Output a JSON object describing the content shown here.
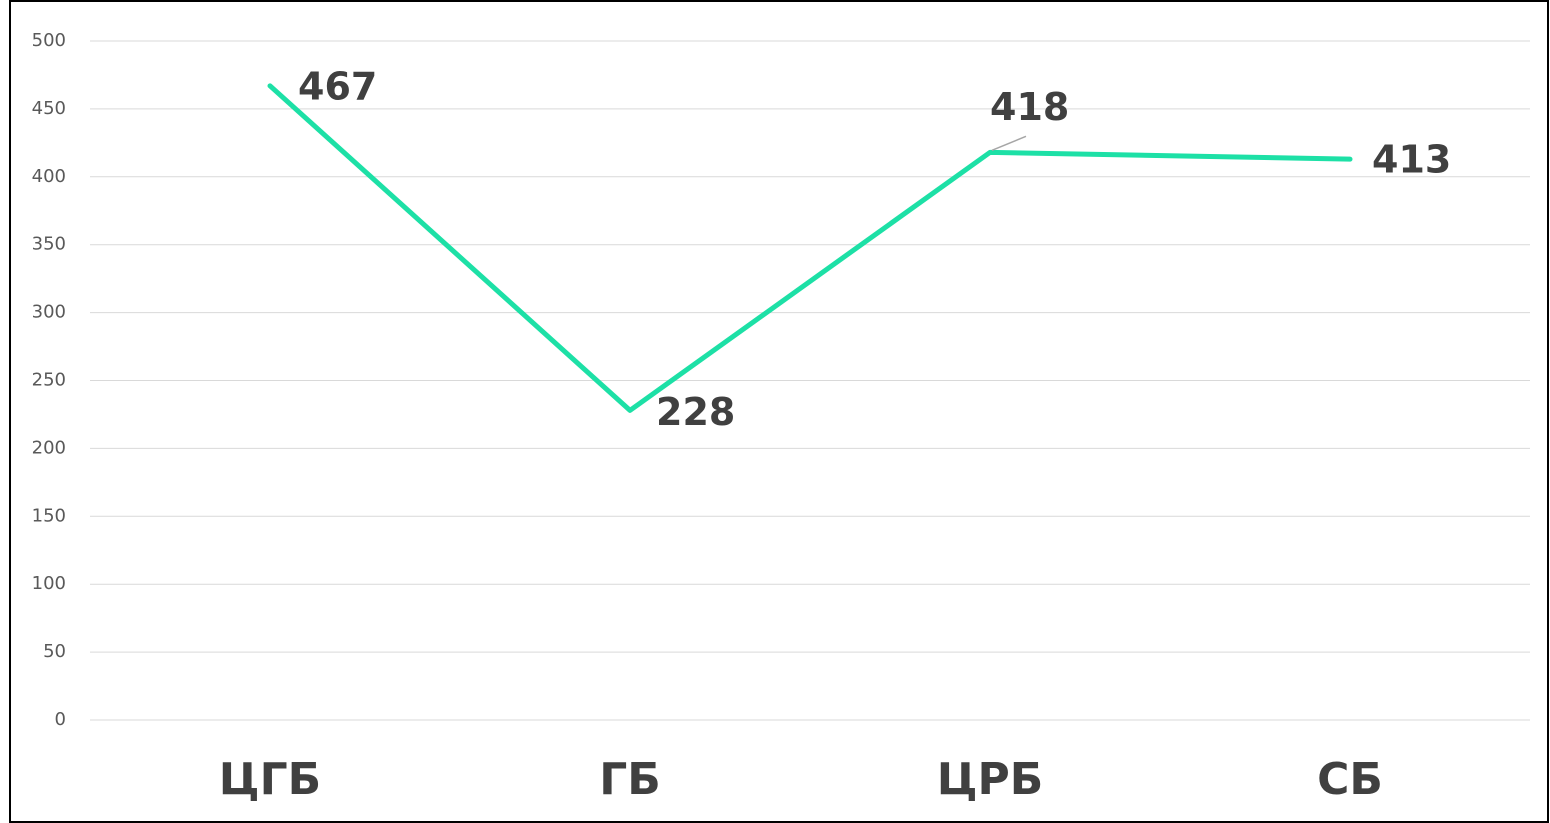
{
  "chart_data": {
    "type": "line",
    "categories": [
      "ЦГБ",
      "ГБ",
      "ЦРБ",
      "СБ"
    ],
    "series": [
      {
        "name": "Series 1",
        "color": "#1de0a6",
        "values": [
          467,
          228,
          418,
          413
        ]
      }
    ],
    "ylim": [
      0,
      500
    ],
    "yticks": [
      0,
      50,
      100,
      150,
      200,
      250,
      300,
      350,
      400,
      450,
      500
    ],
    "grid": true
  }
}
